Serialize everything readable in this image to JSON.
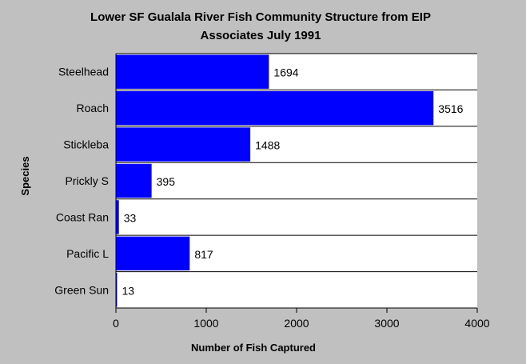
{
  "chart_data": {
    "type": "bar",
    "orientation": "horizontal",
    "title": [
      "Lower SF Gualala River Fish Community Structure from EIP",
      "Associates July 1991"
    ],
    "xlabel": "Number of Fish Captured",
    "ylabel": "Species",
    "categories": [
      "Steelhead",
      "Roach",
      "Stickleba",
      "Prickly S",
      "Coast Ran",
      "Pacific L",
      "Green Sun"
    ],
    "values": [
      1694,
      3516,
      1488,
      395,
      33,
      817,
      13
    ],
    "xlim": [
      0,
      4000
    ],
    "xticks": [
      "0",
      "1000",
      "2000",
      "3000",
      "4000"
    ],
    "grid": "horizontal",
    "bar_color": "#0000ff",
    "plot_background": "#ffffff",
    "page_background": "#c0c0c0"
  }
}
